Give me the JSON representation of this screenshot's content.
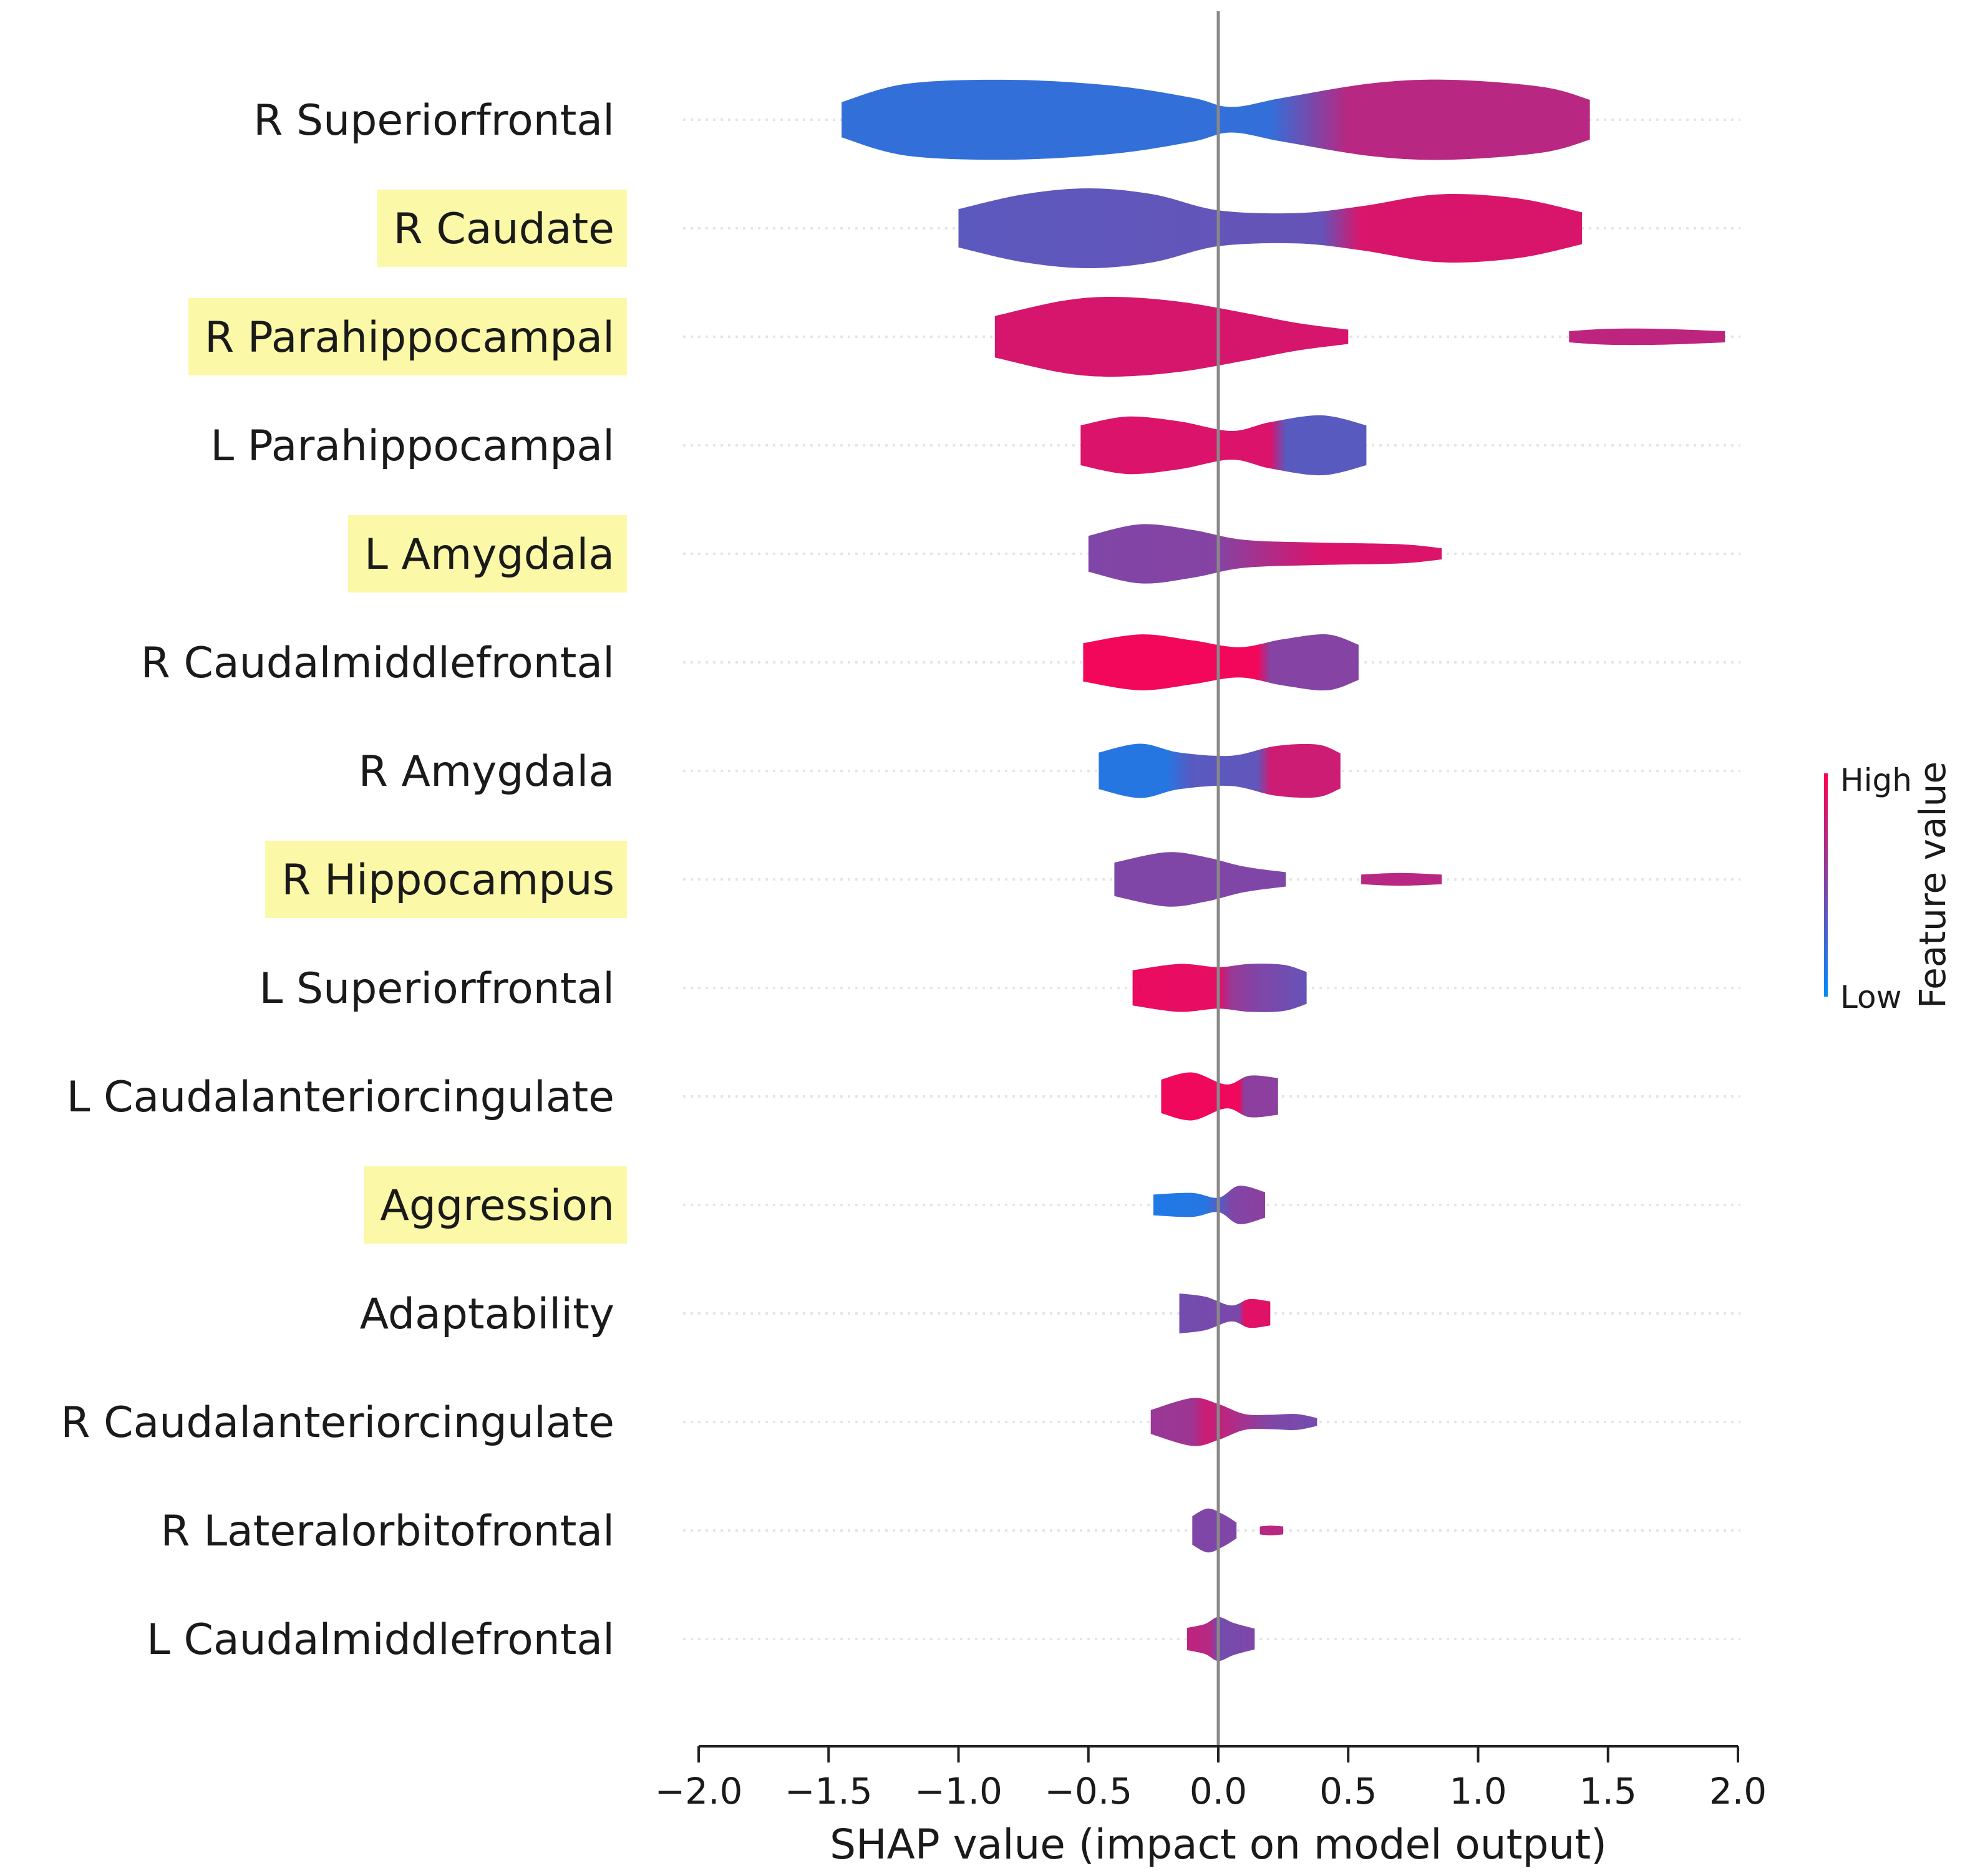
{
  "chart_data": {
    "type": "violin",
    "title": "",
    "xlabel": "SHAP value (impact on model output)",
    "ylabel": "",
    "xlim": [
      -2.0,
      2.0
    ],
    "x_ticks": [
      "−2.0",
      "−1.5",
      "−1.0",
      "−0.5",
      "0.0",
      "0.5",
      "1.0",
      "1.5",
      "2.0"
    ],
    "x_tick_values": [
      -2.0,
      -1.5,
      -1.0,
      -0.5,
      0.0,
      0.5,
      1.0,
      1.5,
      2.0
    ],
    "colorbar": {
      "title": "Feature value",
      "high_label": "High",
      "low_label": "Low",
      "high_color": "#ff0052",
      "low_color": "#008bfb"
    },
    "colors": {
      "low": "#008bfb",
      "high": "#ff0052",
      "highlight": "#fbf8a7",
      "axis": "#222222",
      "zero_line": "#888888",
      "gridline": "#e6e6e6"
    },
    "features": [
      {
        "label": "R Superiorfrontal",
        "highlighted": false,
        "segments": [
          {
            "x_min": -1.45,
            "x_max": 1.43,
            "profile": [
              [
                -1.45,
                0.44
              ],
              [
                -1.2,
                0.9
              ],
              [
                -0.8,
                1.0
              ],
              [
                -0.4,
                0.85
              ],
              [
                -0.1,
                0.55
              ],
              [
                0.05,
                0.32
              ],
              [
                0.25,
                0.55
              ],
              [
                0.6,
                0.92
              ],
              [
                0.9,
                1.0
              ],
              [
                1.25,
                0.82
              ],
              [
                1.43,
                0.5
              ]
            ]
          }
        ],
        "color_stops": [
          [
            -1.45,
            0.2
          ],
          [
            0.2,
            0.2
          ],
          [
            0.5,
            0.72
          ],
          [
            1.43,
            0.72
          ]
        ]
      },
      {
        "label": "R Caudate",
        "highlighted": true,
        "segments": [
          {
            "x_min": -1.0,
            "x_max": 1.4,
            "profile": [
              [
                -1.0,
                0.48
              ],
              [
                -0.75,
                0.85
              ],
              [
                -0.5,
                1.0
              ],
              [
                -0.25,
                0.85
              ],
              [
                0.0,
                0.45
              ],
              [
                0.3,
                0.38
              ],
              [
                0.55,
                0.55
              ],
              [
                0.85,
                0.85
              ],
              [
                1.15,
                0.75
              ],
              [
                1.4,
                0.4
              ]
            ]
          }
        ],
        "color_stops": [
          [
            -1.0,
            0.36
          ],
          [
            0.4,
            0.4
          ],
          [
            0.55,
            0.85
          ],
          [
            1.4,
            0.85
          ]
        ]
      },
      {
        "label": "R Parahippocampal",
        "highlighted": true,
        "segments": [
          {
            "x_min": -0.86,
            "x_max": 0.5,
            "profile": [
              [
                -0.86,
                0.52
              ],
              [
                -0.6,
                0.9
              ],
              [
                -0.4,
                1.0
              ],
              [
                -0.15,
                0.88
              ],
              [
                0.1,
                0.6
              ],
              [
                0.3,
                0.35
              ],
              [
                0.5,
                0.18
              ]
            ]
          },
          {
            "x_min": 1.35,
            "x_max": 1.95,
            "profile": [
              [
                1.35,
                0.14
              ],
              [
                1.5,
                0.2
              ],
              [
                1.7,
                0.2
              ],
              [
                1.95,
                0.14
              ]
            ]
          }
        ],
        "color_stops": [
          [
            -0.86,
            0.84
          ],
          [
            0.5,
            0.84
          ],
          [
            1.35,
            0.74
          ],
          [
            1.95,
            0.74
          ]
        ]
      },
      {
        "label": "L Parahippocampal",
        "highlighted": false,
        "segments": [
          {
            "x_min": -0.53,
            "x_max": 0.57,
            "profile": [
              [
                -0.53,
                0.5
              ],
              [
                -0.35,
                0.72
              ],
              [
                -0.15,
                0.6
              ],
              [
                0.05,
                0.36
              ],
              [
                0.2,
                0.58
              ],
              [
                0.4,
                0.75
              ],
              [
                0.57,
                0.5
              ]
            ]
          }
        ],
        "color_stops": [
          [
            -0.53,
            0.86
          ],
          [
            0.2,
            0.86
          ],
          [
            0.26,
            0.35
          ],
          [
            0.57,
            0.35
          ]
        ]
      },
      {
        "label": "L Amygdala",
        "highlighted": true,
        "segments": [
          {
            "x_min": -0.5,
            "x_max": 0.86,
            "profile": [
              [
                -0.5,
                0.45
              ],
              [
                -0.3,
                0.74
              ],
              [
                -0.1,
                0.6
              ],
              [
                0.1,
                0.35
              ],
              [
                0.4,
                0.28
              ],
              [
                0.7,
                0.24
              ],
              [
                0.86,
                0.14
              ]
            ]
          }
        ],
        "color_stops": [
          [
            -0.5,
            0.5
          ],
          [
            0.0,
            0.52
          ],
          [
            0.4,
            0.86
          ],
          [
            0.86,
            0.86
          ]
        ]
      },
      {
        "label": "R Caudalmiddlefrontal",
        "highlighted": false,
        "segments": [
          {
            "x_min": -0.52,
            "x_max": 0.54,
            "profile": [
              [
                -0.52,
                0.48
              ],
              [
                -0.3,
                0.7
              ],
              [
                -0.1,
                0.55
              ],
              [
                0.08,
                0.38
              ],
              [
                0.25,
                0.58
              ],
              [
                0.42,
                0.7
              ],
              [
                0.54,
                0.44
              ]
            ]
          }
        ],
        "color_stops": [
          [
            -0.52,
            0.95
          ],
          [
            0.15,
            0.95
          ],
          [
            0.2,
            0.52
          ],
          [
            0.54,
            0.52
          ]
        ]
      },
      {
        "label": "R Amygdala",
        "highlighted": false,
        "segments": [
          {
            "x_min": -0.46,
            "x_max": 0.47,
            "profile": [
              [
                -0.46,
                0.46
              ],
              [
                -0.3,
                0.68
              ],
              [
                -0.15,
                0.46
              ],
              [
                0.05,
                0.38
              ],
              [
                0.22,
                0.62
              ],
              [
                0.38,
                0.66
              ],
              [
                0.47,
                0.44
              ]
            ]
          }
        ],
        "color_stops": [
          [
            -0.46,
            0.15
          ],
          [
            -0.2,
            0.15
          ],
          [
            -0.1,
            0.35
          ],
          [
            0.15,
            0.38
          ],
          [
            0.2,
            0.8
          ],
          [
            0.47,
            0.8
          ]
        ]
      },
      {
        "label": "R Hippocampus",
        "highlighted": true,
        "segments": [
          {
            "x_min": -0.4,
            "x_max": 0.26,
            "profile": [
              [
                -0.4,
                0.42
              ],
              [
                -0.2,
                0.68
              ],
              [
                -0.05,
                0.56
              ],
              [
                0.1,
                0.32
              ],
              [
                0.26,
                0.18
              ]
            ]
          },
          {
            "x_min": 0.55,
            "x_max": 0.86,
            "profile": [
              [
                0.55,
                0.12
              ],
              [
                0.7,
                0.16
              ],
              [
                0.86,
                0.12
              ]
            ]
          }
        ],
        "color_stops": [
          [
            -0.4,
            0.5
          ],
          [
            0.26,
            0.5
          ],
          [
            0.55,
            0.72
          ],
          [
            0.86,
            0.72
          ]
        ]
      },
      {
        "label": "L Superiorfrontal",
        "highlighted": false,
        "segments": [
          {
            "x_min": -0.33,
            "x_max": 0.34,
            "profile": [
              [
                -0.33,
                0.44
              ],
              [
                -0.15,
                0.6
              ],
              [
                0.0,
                0.52
              ],
              [
                0.12,
                0.6
              ],
              [
                0.25,
                0.58
              ],
              [
                0.34,
                0.4
              ]
            ]
          }
        ],
        "color_stops": [
          [
            -0.33,
            0.92
          ],
          [
            0.0,
            0.9
          ],
          [
            0.05,
            0.6
          ],
          [
            0.15,
            0.5
          ],
          [
            0.34,
            0.4
          ]
        ]
      },
      {
        "label": "L Caudalanteriorcingulate",
        "highlighted": false,
        "segments": [
          {
            "x_min": -0.22,
            "x_max": 0.23,
            "profile": [
              [
                -0.22,
                0.42
              ],
              [
                -0.1,
                0.6
              ],
              [
                0.03,
                0.3
              ],
              [
                0.12,
                0.52
              ],
              [
                0.23,
                0.46
              ]
            ]
          }
        ],
        "color_stops": [
          [
            -0.22,
            0.94
          ],
          [
            0.08,
            0.94
          ],
          [
            0.1,
            0.55
          ],
          [
            0.23,
            0.55
          ]
        ]
      },
      {
        "label": "Aggression",
        "highlighted": true,
        "segments": [
          {
            "x_min": -0.25,
            "x_max": 0.18,
            "profile": [
              [
                -0.25,
                0.26
              ],
              [
                -0.1,
                0.3
              ],
              [
                0.0,
                0.18
              ],
              [
                0.08,
                0.48
              ],
              [
                0.18,
                0.32
              ]
            ]
          }
        ],
        "color_stops": [
          [
            -0.25,
            0.12
          ],
          [
            -0.05,
            0.15
          ],
          [
            0.05,
            0.5
          ],
          [
            0.18,
            0.55
          ]
        ]
      },
      {
        "label": "Adaptability",
        "highlighted": false,
        "segments": [
          {
            "x_min": -0.15,
            "x_max": 0.2,
            "profile": [
              [
                -0.15,
                0.5
              ],
              [
                -0.05,
                0.42
              ],
              [
                0.05,
                0.2
              ],
              [
                0.12,
                0.36
              ],
              [
                0.2,
                0.3
              ]
            ]
          }
        ],
        "color_stops": [
          [
            -0.15,
            0.45
          ],
          [
            0.08,
            0.48
          ],
          [
            0.1,
            0.88
          ],
          [
            0.2,
            0.88
          ]
        ]
      },
      {
        "label": "R Caudalanteriorcingulate",
        "highlighted": false,
        "segments": [
          {
            "x_min": -0.26,
            "x_max": 0.38,
            "profile": [
              [
                -0.26,
                0.3
              ],
              [
                -0.1,
                0.6
              ],
              [
                0.0,
                0.45
              ],
              [
                0.1,
                0.2
              ],
              [
                0.2,
                0.18
              ],
              [
                0.3,
                0.2
              ],
              [
                0.38,
                0.1
              ]
            ]
          }
        ],
        "color_stops": [
          [
            -0.26,
            0.6
          ],
          [
            -0.1,
            0.62
          ],
          [
            -0.05,
            0.8
          ],
          [
            0.05,
            0.7
          ],
          [
            0.2,
            0.5
          ],
          [
            0.38,
            0.45
          ]
        ]
      },
      {
        "label": "R Lateralorbitofrontal",
        "highlighted": false,
        "segments": [
          {
            "x_min": -0.1,
            "x_max": 0.07,
            "profile": [
              [
                -0.1,
                0.36
              ],
              [
                -0.04,
                0.55
              ],
              [
                0.02,
                0.4
              ],
              [
                0.07,
                0.2
              ]
            ]
          },
          {
            "x_min": 0.16,
            "x_max": 0.25,
            "profile": [
              [
                0.16,
                0.1
              ],
              [
                0.2,
                0.12
              ],
              [
                0.25,
                0.1
              ]
            ]
          }
        ],
        "color_stops": [
          [
            -0.1,
            0.5
          ],
          [
            0.07,
            0.5
          ],
          [
            0.16,
            0.72
          ],
          [
            0.25,
            0.72
          ]
        ]
      },
      {
        "label": "L Caudalmiddlefrontal",
        "highlighted": false,
        "segments": [
          {
            "x_min": -0.12,
            "x_max": 0.14,
            "profile": [
              [
                -0.12,
                0.28
              ],
              [
                -0.05,
                0.38
              ],
              [
                0.0,
                0.55
              ],
              [
                0.06,
                0.4
              ],
              [
                0.14,
                0.26
              ]
            ]
          }
        ],
        "color_stops": [
          [
            -0.12,
            0.75
          ],
          [
            -0.03,
            0.7
          ],
          [
            0.0,
            0.45
          ],
          [
            0.14,
            0.5
          ]
        ]
      }
    ]
  }
}
